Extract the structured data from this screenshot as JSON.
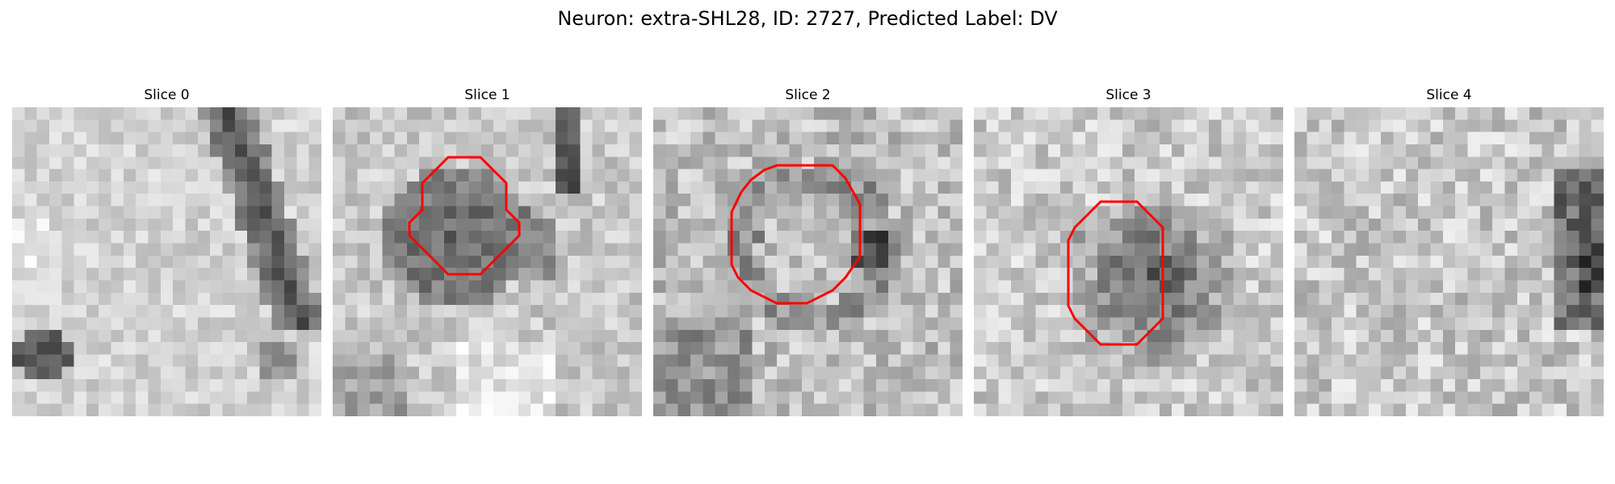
{
  "figure": {
    "title": "Neuron: extra-SHL28, ID: 2727, Predicted Label: DV"
  },
  "colors": {
    "contour": "#ff0000",
    "background": "#ffffff"
  },
  "colormap": "gray",
  "panels": [
    {
      "title": "Slice 0",
      "has_contour": false,
      "grid_size": 25
    },
    {
      "title": "Slice 1",
      "has_contour": true,
      "grid_size": 25
    },
    {
      "title": "Slice 2",
      "has_contour": true,
      "grid_size": 25
    },
    {
      "title": "Slice 3",
      "has_contour": true,
      "grid_size": 25
    },
    {
      "title": "Slice 4",
      "has_contour": false,
      "grid_size": 25
    }
  ]
}
